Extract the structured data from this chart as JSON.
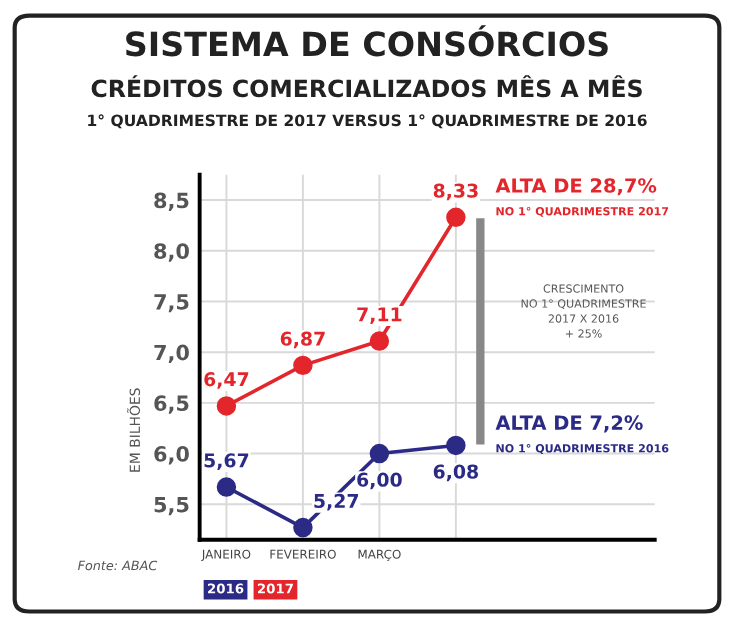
{
  "chart_data": {
    "type": "line",
    "title": "SISTEMA DE CONSÓRCIOS",
    "subtitle": "CRÉDITOS COMERCIALIZADOS MÊS A MÊS\n1° QUADRIMESTRE DE 2017 VERSUS 1° QUADRIMESTRE DE 2016",
    "ylabel": "EM BILHÕES",
    "categories": [
      "JANEIRO",
      "FEVEREIRO",
      "MARÇO",
      null
    ],
    "series": [
      {
        "name": "2016",
        "color": "#2b2b86",
        "values": [
          5.67,
          5.27,
          6.0,
          6.08
        ],
        "value_labels": [
          "5,67",
          "5,27",
          "6,00",
          "6,08"
        ]
      },
      {
        "name": "2017",
        "color": "#e3262b",
        "values": [
          6.47,
          6.87,
          7.11,
          8.33
        ],
        "value_labels": [
          "6,47",
          "6,87",
          "7,11",
          "8,33"
        ]
      }
    ],
    "ylim": [
      5.15,
      8.75
    ],
    "yticks": [
      {
        "value": 5.5,
        "label": "5,5"
      },
      {
        "value": 6.0,
        "label": "6,0"
      },
      {
        "value": 6.5,
        "label": "6,5"
      },
      {
        "value": 7.0,
        "label": "7,0"
      },
      {
        "value": 7.5,
        "label": "7,5"
      },
      {
        "value": 8.0,
        "label": "8,0"
      },
      {
        "value": 8.5,
        "label": "8,5"
      }
    ],
    "grid": true,
    "legend": "bottom left",
    "marker": "circle",
    "line_style": "solid",
    "annotations": [
      "ALTA DE 28,7%",
      "NO 1° QUADRIMESTRE 2017",
      "CRESCIMENTO\nNO 1° QUADRIMESTRE\n2017 X 2016\n+ 25%",
      "ALTA DE 7,2%",
      "NO 1° QUADRIMESTRE 2016",
      "Fonte: ABAC"
    ]
  }
}
